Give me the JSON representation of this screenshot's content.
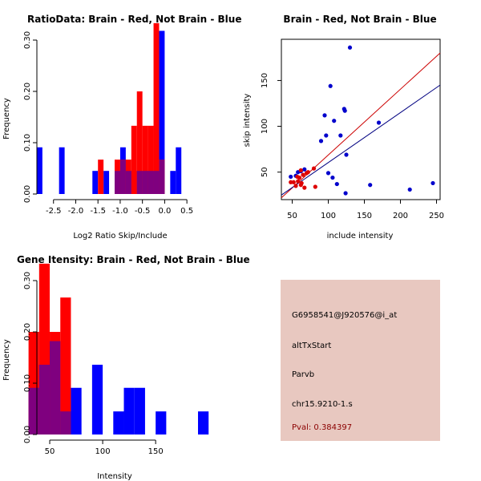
{
  "chart_data": [
    {
      "type": "bar",
      "title": "RatioData: Brain - Red, Not Brain - Blue",
      "xlabel": "Log2 Ratio Skip/Include",
      "ylabel": "Frequency",
      "xlim": [
        -3,
        0.75
      ],
      "ylim": [
        0,
        0.35
      ],
      "xticks": [
        -2.5,
        -2.0,
        -1.5,
        -1.0,
        -0.5,
        0.0,
        0.5
      ],
      "xtick_labels": [
        "-2.5",
        "-2.0",
        "-1.5",
        "-1.0",
        "-0.5",
        "0.0",
        "0.5"
      ],
      "yticks": [
        0.0,
        0.1,
        0.2,
        0.3
      ],
      "ytick_labels": [
        "0.00",
        "0.10",
        "0.20",
        "0.30"
      ],
      "bin_width": 0.125,
      "series": [
        {
          "name": "Not Brain",
          "color": "#0000ff",
          "bins": [
            [
              -2.875,
              0.091
            ],
            [
              -2.375,
              0.091
            ],
            [
              -1.625,
              0.045
            ],
            [
              -1.375,
              0.045
            ],
            [
              -1.125,
              0.045
            ],
            [
              -1.0,
              0.091
            ],
            [
              -0.875,
              0.045
            ],
            [
              -0.625,
              0.045
            ],
            [
              -0.5,
              0.045
            ],
            [
              -0.375,
              0.045
            ],
            [
              -0.25,
              0.045
            ],
            [
              -0.125,
              0.318
            ],
            [
              0.125,
              0.045
            ],
            [
              0.25,
              0.091
            ]
          ]
        },
        {
          "name": "Brain",
          "color": "#ff0000",
          "bins": [
            [
              -1.5,
              0.067
            ],
            [
              -1.125,
              0.067
            ],
            [
              -1.0,
              0.067
            ],
            [
              -0.875,
              0.067
            ],
            [
              -0.75,
              0.133
            ],
            [
              -0.625,
              0.2
            ],
            [
              -0.5,
              0.133
            ],
            [
              -0.375,
              0.133
            ],
            [
              -0.25,
              0.333
            ],
            [
              -0.125,
              0.067
            ]
          ]
        }
      ]
    },
    {
      "type": "scatter",
      "title": "Brain - Red, Not Brain - Blue",
      "xlabel": "include intensity",
      "ylabel": "skip intensity",
      "xlim": [
        35,
        255
      ],
      "ylim": [
        20,
        195
      ],
      "xticks": [
        50,
        100,
        150,
        200,
        250
      ],
      "xtick_labels": [
        "50",
        "100",
        "150",
        "200",
        "250"
      ],
      "yticks": [
        50,
        100,
        150
      ],
      "ytick_labels": [
        "50",
        "100",
        "150"
      ],
      "series": [
        {
          "name": "Not Brain",
          "color": "#0000cc",
          "points": [
            [
              130,
              186
            ],
            [
              103,
              144
            ],
            [
              95,
              112
            ],
            [
              122,
              119
            ],
            [
              123,
              117
            ],
            [
              108,
              106
            ],
            [
              170,
              104
            ],
            [
              97,
              90
            ],
            [
              117,
              90
            ],
            [
              90,
              84
            ],
            [
              125,
              69
            ],
            [
              100,
              49
            ],
            [
              106,
              44
            ],
            [
              158,
              36
            ],
            [
              112,
              37
            ],
            [
              213,
              31
            ],
            [
              245,
              38
            ],
            [
              124,
              27
            ],
            [
              48,
              45
            ],
            [
              55,
              46
            ],
            [
              62,
              51
            ],
            [
              67,
              53
            ],
            [
              58,
              50
            ]
          ]
        },
        {
          "name": "Brain",
          "color": "#dd0000",
          "points": [
            [
              48,
              39
            ],
            [
              52,
              39
            ],
            [
              55,
              35
            ],
            [
              58,
              40
            ],
            [
              60,
              44
            ],
            [
              62,
              36
            ],
            [
              63,
              38
            ],
            [
              65,
              47
            ],
            [
              67,
              33
            ],
            [
              70,
              49
            ],
            [
              72,
              50
            ],
            [
              62,
              52
            ],
            [
              80,
              54
            ],
            [
              82,
              34
            ],
            [
              57,
              45
            ]
          ]
        }
      ],
      "lines": [
        {
          "name": "Brain fit",
          "color": "#cc0000",
          "x": [
            35,
            255
          ],
          "y": [
            22,
            180
          ]
        },
        {
          "name": "Not Brain fit",
          "color": "#000080",
          "x": [
            35,
            255
          ],
          "y": [
            25,
            145
          ]
        }
      ]
    },
    {
      "type": "bar",
      "title": "Gene Itensity: Brain - Red, Not Brain - Blue",
      "xlabel": "Intensity",
      "ylabel": "Frequency",
      "xlim": [
        25,
        190
      ],
      "ylim": [
        0,
        0.35
      ],
      "xticks": [
        50,
        100,
        150
      ],
      "xtick_labels": [
        "50",
        "100",
        "150"
      ],
      "yticks": [
        0.0,
        0.1,
        0.2,
        0.3
      ],
      "ytick_labels": [
        "0.00",
        "0.10",
        "0.20",
        "0.30"
      ],
      "bin_width": 10,
      "series": [
        {
          "name": "Not Brain",
          "color": "#0000ff",
          "bins": [
            [
              30,
              0.091
            ],
            [
              40,
              0.136
            ],
            [
              50,
              0.182
            ],
            [
              60,
              0.045
            ],
            [
              70,
              0.091
            ],
            [
              90,
              0.136
            ],
            [
              110,
              0.045
            ],
            [
              120,
              0.091
            ],
            [
              130,
              0.091
            ],
            [
              150,
              0.045
            ],
            [
              190,
              0.045
            ]
          ]
        },
        {
          "name": "Brain",
          "color": "#ff0000",
          "bins": [
            [
              30,
              0.2
            ],
            [
              40,
              0.333
            ],
            [
              50,
              0.2
            ],
            [
              60,
              0.267
            ]
          ]
        }
      ]
    }
  ],
  "info_panel": {
    "probe_id": "G6958541@J920576@i_at",
    "event_type": "altTxStart",
    "gene": "Parvb",
    "location": "chr15.9210-1.s",
    "pval": "Pval: 0.384397",
    "bg_color": "#e8c8c0"
  }
}
